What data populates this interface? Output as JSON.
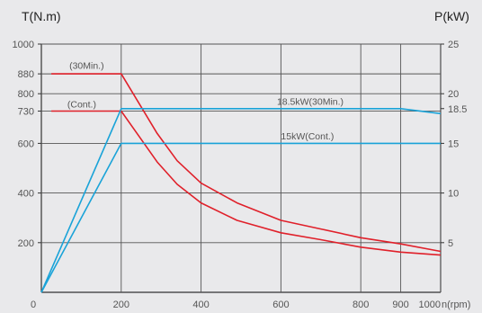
{
  "chart_data": {
    "type": "line",
    "left_axis_title": "T(N.m)",
    "right_axis_title": "P(kW)",
    "x_unit_label": "n(rpm)",
    "xlim": [
      0,
      1000
    ],
    "ylim_left": [
      0,
      1000
    ],
    "ylim_right": [
      0,
      25
    ],
    "x_ticks": [
      0,
      200,
      400,
      600,
      800,
      900,
      1000
    ],
    "y_left_ticks": [
      200,
      400,
      600,
      730,
      800,
      880,
      1000
    ],
    "y_right_ticks": [
      5,
      10,
      15,
      18.5,
      20,
      25
    ],
    "x_gridlines": [
      200,
      400,
      600,
      800,
      900,
      1000
    ],
    "y_gridlines": [
      1000,
      200,
      400,
      600,
      730,
      800,
      880
    ],
    "colors": {
      "torque": "#e0202a",
      "power": "#1aa3d8",
      "grid": "#555555",
      "frame": "#333333"
    },
    "series": [
      {
        "name": "(30Min.)",
        "axis": "left",
        "color": "#e0202a",
        "points": [
          [
            25,
            880
          ],
          [
            200,
            880
          ],
          [
            290,
            640
          ],
          [
            340,
            530
          ],
          [
            400,
            440
          ],
          [
            490,
            360
          ],
          [
            600,
            290
          ],
          [
            700,
            255
          ],
          [
            800,
            220
          ],
          [
            900,
            195
          ],
          [
            1000,
            165
          ]
        ]
      },
      {
        "name": "(Cont.)",
        "axis": "left",
        "color": "#e0202a",
        "points": [
          [
            25,
            730
          ],
          [
            200,
            730
          ],
          [
            290,
            525
          ],
          [
            340,
            435
          ],
          [
            400,
            360
          ],
          [
            490,
            290
          ],
          [
            600,
            240
          ],
          [
            700,
            212
          ],
          [
            800,
            182
          ],
          [
            900,
            162
          ],
          [
            1000,
            150
          ]
        ]
      },
      {
        "name": "18.5kW(30Min.)",
        "axis": "right",
        "color": "#1aa3d8",
        "points": [
          [
            0,
            0
          ],
          [
            200,
            18.5
          ],
          [
            900,
            18.5
          ],
          [
            1000,
            18.0
          ]
        ]
      },
      {
        "name": "15kW(Cont.)",
        "axis": "right",
        "color": "#1aa3d8",
        "points": [
          [
            0,
            0
          ],
          [
            200,
            15
          ],
          [
            1000,
            15
          ]
        ]
      }
    ],
    "annotations": [
      {
        "text": "(30Min.)",
        "x": 70,
        "y": 900,
        "axis": "left"
      },
      {
        "text": "(Cont.)",
        "x": 65,
        "y": 745,
        "axis": "left"
      },
      {
        "text": "18.5kW(30Min.)",
        "x": 590,
        "y": 18.9,
        "axis": "right"
      },
      {
        "text": "15kW(Cont.)",
        "x": 600,
        "y": 15.4,
        "axis": "right"
      }
    ]
  }
}
